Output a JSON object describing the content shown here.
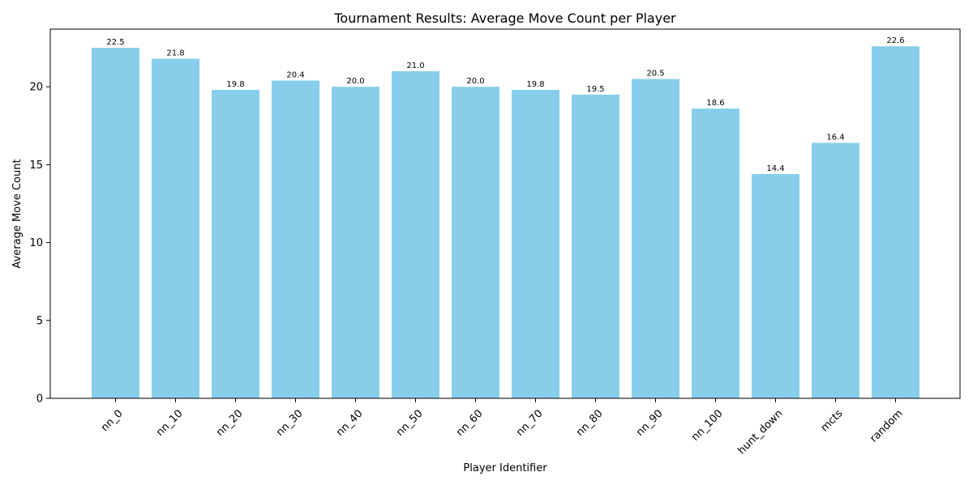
{
  "chart_data": {
    "type": "bar",
    "title": "Tournament Results: Average Move Count per Player",
    "xlabel": "Player Identifier",
    "ylabel": "Average Move Count",
    "categories": [
      "nn_0",
      "nn_10",
      "nn_20",
      "nn_30",
      "nn_40",
      "nn_50",
      "nn_60",
      "nn_70",
      "nn_80",
      "nn_90",
      "nn_100",
      "hunt_down",
      "mcts",
      "random"
    ],
    "values": [
      22.5,
      21.8,
      19.8,
      20.4,
      20.0,
      21.0,
      20.0,
      19.8,
      19.5,
      20.5,
      18.6,
      14.4,
      16.4,
      22.6
    ],
    "data_labels": [
      "22.5",
      "21.8",
      "19.8",
      "20.4",
      "20.0",
      "21.0",
      "20.0",
      "19.8",
      "19.5",
      "20.5",
      "18.6",
      "14.4",
      "16.4",
      "22.6"
    ],
    "ylim": [
      0,
      23.7
    ],
    "yticks": [
      0,
      5,
      10,
      15,
      20
    ],
    "ytick_labels": [
      "0",
      "5",
      "10",
      "15",
      "20"
    ],
    "xtick_rotation_deg": 45,
    "grid": false,
    "bar_color": "#87ceeb"
  }
}
